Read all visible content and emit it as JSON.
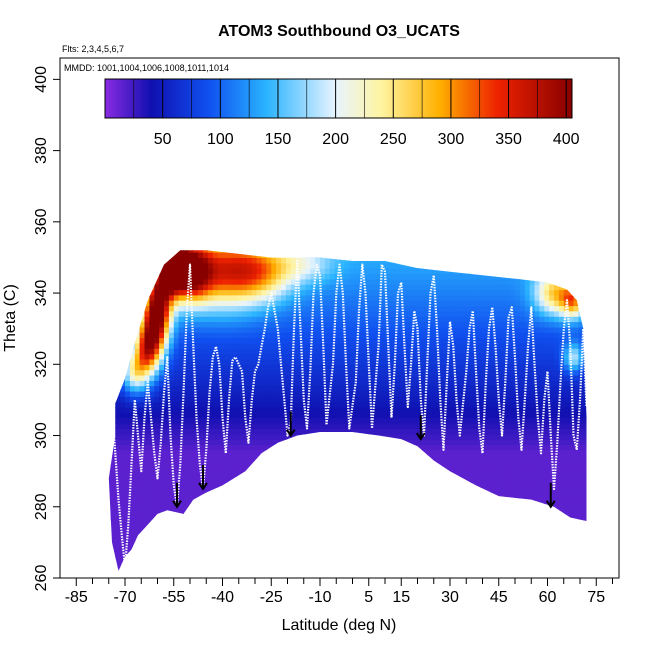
{
  "chart_data": {
    "type": "heatmap",
    "title": "ATOM3 Southbound O3_UCATS",
    "annotations": [
      "Flts: 2,3,4,5,6,7",
      "MMDD: 1001,1004,1006,1008,1011,1014"
    ],
    "xlabel": "Latitude (deg N)",
    "ylabel": "Theta (C)",
    "xlim": [
      -90,
      82
    ],
    "ylim": [
      260,
      406
    ],
    "x_ticks": [
      -85,
      -70,
      -55,
      -40,
      -25,
      -10,
      5,
      15,
      30,
      45,
      60,
      75
    ],
    "y_ticks": [
      260,
      280,
      300,
      320,
      340,
      360,
      380,
      400
    ],
    "colorbar": {
      "ticks": [
        50,
        100,
        150,
        200,
        250,
        300,
        350,
        400
      ],
      "range": [
        0,
        405
      ],
      "stops": [
        {
          "v": 0,
          "color": "#8a2be2"
        },
        {
          "v": 40,
          "color": "#1010b0"
        },
        {
          "v": 90,
          "color": "#1050f0"
        },
        {
          "v": 140,
          "color": "#2ab4ff"
        },
        {
          "v": 200,
          "color": "#e8f4ff"
        },
        {
          "v": 240,
          "color": "#fff4a0"
        },
        {
          "v": 290,
          "color": "#ffb000"
        },
        {
          "v": 340,
          "color": "#ee2200"
        },
        {
          "v": 405,
          "color": "#880000"
        }
      ]
    },
    "domain_bottom": [
      [
        -72,
        262
      ],
      [
        -70,
        266
      ],
      [
        -68,
        268
      ],
      [
        -66,
        272
      ],
      [
        -63,
        275
      ],
      [
        -60,
        278
      ],
      [
        -57,
        279
      ],
      [
        -52,
        278
      ],
      [
        -49,
        282
      ],
      [
        -45,
        284
      ],
      [
        -40,
        286
      ],
      [
        -33,
        290
      ],
      [
        -28,
        295
      ],
      [
        -23,
        298
      ],
      [
        -17,
        300
      ],
      [
        -10,
        301
      ],
      [
        0,
        301
      ],
      [
        8,
        300
      ],
      [
        15,
        299
      ],
      [
        20,
        297
      ],
      [
        25,
        293
      ],
      [
        30,
        290
      ],
      [
        38,
        286
      ],
      [
        45,
        283
      ],
      [
        55,
        282
      ],
      [
        62,
        280
      ],
      [
        67,
        277
      ],
      [
        72,
        276
      ]
    ],
    "domain_top": [
      [
        72,
        305
      ],
      [
        71,
        330
      ],
      [
        69,
        338
      ],
      [
        66,
        341
      ],
      [
        60,
        343
      ],
      [
        50,
        344
      ],
      [
        40,
        345
      ],
      [
        30,
        346
      ],
      [
        20,
        347
      ],
      [
        10,
        349
      ],
      [
        0,
        349
      ],
      [
        -10,
        350
      ],
      [
        -15,
        350
      ],
      [
        -25,
        350
      ],
      [
        -35,
        351
      ],
      [
        -45,
        352
      ],
      [
        -53,
        352
      ],
      [
        -58,
        348
      ],
      [
        -63,
        338
      ],
      [
        -67,
        326
      ],
      [
        -70,
        316
      ],
      [
        -73,
        309
      ],
      [
        -73,
        300
      ],
      [
        -75,
        288
      ],
      [
        -74,
        270
      ]
    ],
    "arrows": [
      {
        "lat": -54,
        "theta": 280
      },
      {
        "lat": -46,
        "theta": 285
      },
      {
        "lat": -19,
        "theta": 300
      },
      {
        "lat": 21,
        "theta": 299
      },
      {
        "lat": 61,
        "theta": 280
      }
    ],
    "flight_track": [
      [
        -74,
        308
      ],
      [
        -73,
        295
      ],
      [
        -72,
        282
      ],
      [
        -71,
        272
      ],
      [
        -70,
        263
      ],
      [
        -69,
        275
      ],
      [
        -68,
        292
      ],
      [
        -67,
        310
      ],
      [
        -66,
        300
      ],
      [
        -65,
        290
      ],
      [
        -64,
        305
      ],
      [
        -63,
        315
      ],
      [
        -62,
        305
      ],
      [
        -61,
        295
      ],
      [
        -60,
        288
      ],
      [
        -59,
        298
      ],
      [
        -58,
        312
      ],
      [
        -57,
        322
      ],
      [
        -56,
        300
      ],
      [
        -55,
        286
      ],
      [
        -54,
        280
      ],
      [
        -53,
        292
      ],
      [
        -52,
        312
      ],
      [
        -51,
        335
      ],
      [
        -50,
        348
      ],
      [
        -49,
        325
      ],
      [
        -48,
        305
      ],
      [
        -47,
        292
      ],
      [
        -46,
        285
      ],
      [
        -45,
        296
      ],
      [
        -44,
        312
      ],
      [
        -43,
        322
      ],
      [
        -42,
        325
      ],
      [
        -41,
        320
      ],
      [
        -40,
        305
      ],
      [
        -39,
        295
      ],
      [
        -38,
        310
      ],
      [
        -37,
        321
      ],
      [
        -36,
        322
      ],
      [
        -34,
        318
      ],
      [
        -33,
        305
      ],
      [
        -32,
        298
      ],
      [
        -31,
        310
      ],
      [
        -30,
        318
      ],
      [
        -29,
        320
      ],
      [
        -28,
        325
      ],
      [
        -27,
        330
      ],
      [
        -26,
        336
      ],
      [
        -25,
        340
      ],
      [
        -24,
        335
      ],
      [
        -23,
        330
      ],
      [
        -22,
        320
      ],
      [
        -21,
        310
      ],
      [
        -20,
        300
      ],
      [
        -19,
        304
      ],
      [
        -18,
        330
      ],
      [
        -17,
        349
      ],
      [
        -16,
        330
      ],
      [
        -15,
        310
      ],
      [
        -14,
        302
      ],
      [
        -13,
        318
      ],
      [
        -12,
        340
      ],
      [
        -11,
        348
      ],
      [
        -10,
        345
      ],
      [
        -9,
        325
      ],
      [
        -8,
        303
      ],
      [
        -6,
        320
      ],
      [
        -5,
        340
      ],
      [
        -4,
        348
      ],
      [
        -3,
        340
      ],
      [
        -2,
        320
      ],
      [
        -1,
        302
      ],
      [
        1,
        315
      ],
      [
        2,
        335
      ],
      [
        3,
        348
      ],
      [
        4,
        340
      ],
      [
        5,
        320
      ],
      [
        6,
        302
      ],
      [
        8,
        325
      ],
      [
        9,
        348
      ],
      [
        10,
        346
      ],
      [
        11,
        325
      ],
      [
        12,
        305
      ],
      [
        13,
        320
      ],
      [
        14,
        340
      ],
      [
        15,
        343
      ],
      [
        16,
        325
      ],
      [
        17,
        308
      ],
      [
        18,
        320
      ],
      [
        19,
        335
      ],
      [
        20,
        330
      ],
      [
        21,
        310
      ],
      [
        22,
        300
      ],
      [
        23,
        320
      ],
      [
        24,
        340
      ],
      [
        25,
        345
      ],
      [
        26,
        330
      ],
      [
        27,
        310
      ],
      [
        28,
        296
      ],
      [
        29,
        315
      ],
      [
        30,
        332
      ],
      [
        31,
        325
      ],
      [
        32,
        310
      ],
      [
        33,
        300
      ],
      [
        35,
        318
      ],
      [
        36,
        330
      ],
      [
        37,
        335
      ],
      [
        38,
        318
      ],
      [
        39,
        302
      ],
      [
        40,
        295
      ],
      [
        41,
        315
      ],
      [
        42,
        330
      ],
      [
        43,
        336
      ],
      [
        44,
        325
      ],
      [
        45,
        310
      ],
      [
        46,
        300
      ],
      [
        47,
        315
      ],
      [
        48,
        333
      ],
      [
        49,
        336
      ],
      [
        50,
        322
      ],
      [
        51,
        305
      ],
      [
        52,
        296
      ],
      [
        53,
        310
      ],
      [
        54,
        325
      ],
      [
        55,
        336
      ],
      [
        56,
        320
      ],
      [
        57,
        305
      ],
      [
        58,
        295
      ],
      [
        59,
        310
      ],
      [
        60,
        318
      ],
      [
        61,
        300
      ],
      [
        62,
        285
      ],
      [
        63,
        298
      ],
      [
        64,
        315
      ],
      [
        65,
        330
      ],
      [
        66,
        338
      ],
      [
        67,
        325
      ],
      [
        68,
        300
      ],
      [
        69,
        296
      ],
      [
        70,
        310
      ],
      [
        71,
        330
      ],
      [
        72,
        308
      ]
    ],
    "field": {
      "base": 15,
      "blobs": [
        {
          "lat": -56,
          "theta": 350,
          "rl": 4,
          "rt": 9,
          "amp": 390
        },
        {
          "lat": -50,
          "theta": 346,
          "rl": 6,
          "rt": 8,
          "amp": 250
        },
        {
          "lat": -60,
          "theta": 335,
          "rl": 4,
          "rt": 10,
          "amp": 320
        },
        {
          "lat": -63,
          "theta": 325,
          "rl": 4,
          "rt": 8,
          "amp": 250
        },
        {
          "lat": -67,
          "theta": 318,
          "rl": 4,
          "rt": 6,
          "amp": 150
        },
        {
          "lat": -40,
          "theta": 346,
          "rl": 12,
          "rt": 10,
          "amp": 190
        },
        {
          "lat": -28,
          "theta": 346,
          "rl": 10,
          "rt": 8,
          "amp": 130
        },
        {
          "lat": -15,
          "theta": 348,
          "rl": 9,
          "rt": 5,
          "amp": 60
        },
        {
          "lat": 62,
          "theta": 340,
          "rl": 6,
          "rt": 6,
          "amp": 150
        },
        {
          "lat": 68,
          "theta": 338,
          "rl": 4,
          "rt": 5,
          "amp": 170
        },
        {
          "lat": 68,
          "theta": 322,
          "rl": 3,
          "rt": 4,
          "amp": 110
        }
      ]
    }
  }
}
